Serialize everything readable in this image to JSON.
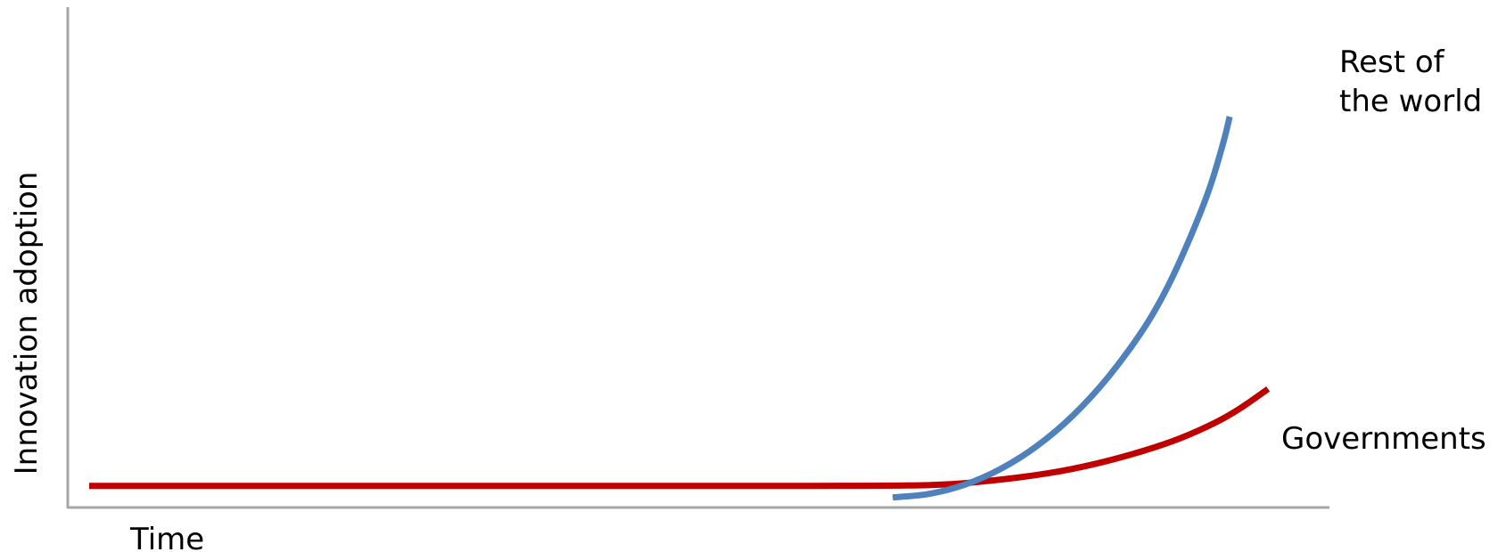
{
  "chart_data": {
    "type": "line",
    "title": "",
    "xlabel": "Time",
    "ylabel": "Innovation adoption",
    "xlim": [
      0,
      100
    ],
    "ylim": [
      0,
      100
    ],
    "grid": false,
    "legend": "none",
    "series": [
      {
        "name": "Governments",
        "color": "#c00000",
        "points": [
          [
            0,
            4
          ],
          [
            10,
            4
          ],
          [
            20,
            4
          ],
          [
            30,
            4
          ],
          [
            40,
            4
          ],
          [
            50,
            4
          ],
          [
            60,
            4
          ],
          [
            70,
            4.2
          ],
          [
            75,
            5.3
          ],
          [
            80,
            7.3
          ],
          [
            84,
            9.8
          ],
          [
            88,
            13.2
          ],
          [
            91,
            16.4
          ],
          [
            94,
            20.6
          ],
          [
            96,
            24.2
          ],
          [
            98.3,
            29.2
          ]
        ]
      },
      {
        "name": "Rest of the world",
        "color": "#4f81bd",
        "points": [
          [
            67,
            1
          ],
          [
            70,
            1.9
          ],
          [
            73,
            4.3
          ],
          [
            76,
            8.4
          ],
          [
            79,
            14.3
          ],
          [
            82,
            22.2
          ],
          [
            85,
            32.4
          ],
          [
            88,
            45.2
          ],
          [
            90,
            56.2
          ],
          [
            92,
            70.0
          ],
          [
            93.5,
            82.1
          ],
          [
            94.6,
            93.6
          ],
          [
            95.1,
            100
          ]
        ]
      }
    ],
    "annotations": [
      {
        "series": "Rest of the world",
        "lines": [
          "Rest of",
          "the world"
        ]
      },
      {
        "series": "Governments",
        "lines": [
          "Governments"
        ]
      }
    ]
  }
}
